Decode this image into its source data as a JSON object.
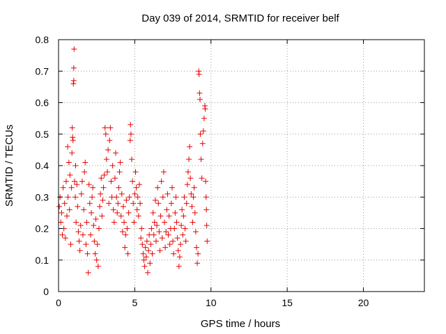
{
  "chart_data": {
    "type": "scatter",
    "title": "Day 039 of 2014, SRMTID for receiver belf",
    "xlabel": "GPS time / hours",
    "ylabel": "SRMTID / TECUs",
    "xlim": [
      0,
      24
    ],
    "ylim": [
      0,
      0.8
    ],
    "xticks": [
      0,
      5,
      10,
      15,
      20
    ],
    "yticks": [
      0,
      0.1,
      0.2,
      0.3,
      0.4,
      0.5,
      0.6,
      0.7,
      0.8
    ],
    "grid": true,
    "marker": "+",
    "series": [
      {
        "name": "SRMTID",
        "color": "#e60000",
        "points": [
          [
            0.05,
            0.27
          ],
          [
            0.1,
            0.3
          ],
          [
            0.15,
            0.22
          ],
          [
            0.2,
            0.25
          ],
          [
            0.25,
            0.18
          ],
          [
            0.3,
            0.33
          ],
          [
            0.35,
            0.2
          ],
          [
            0.4,
            0.28
          ],
          [
            0.45,
            0.17
          ],
          [
            0.5,
            0.35
          ],
          [
            0.55,
            0.24
          ],
          [
            0.6,
            0.46
          ],
          [
            0.62,
            0.3
          ],
          [
            0.68,
            0.41
          ],
          [
            0.72,
            0.26
          ],
          [
            0.75,
            0.37
          ],
          [
            0.8,
            0.15
          ],
          [
            0.85,
            0.33
          ],
          [
            0.88,
            0.44
          ],
          [
            0.9,
            0.52
          ],
          [
            0.92,
            0.49
          ],
          [
            0.95,
            0.48
          ],
          [
            0.97,
            0.66
          ],
          [
            1.0,
            0.67
          ],
          [
            1.0,
            0.71
          ],
          [
            1.02,
            0.77
          ],
          [
            1.05,
            0.35
          ],
          [
            1.1,
            0.3
          ],
          [
            1.12,
            0.4
          ],
          [
            1.15,
            0.22
          ],
          [
            1.2,
            0.34
          ],
          [
            1.25,
            0.27
          ],
          [
            1.3,
            0.19
          ],
          [
            1.35,
            0.16
          ],
          [
            1.4,
            0.13
          ],
          [
            1.45,
            0.21
          ],
          [
            1.5,
            0.31
          ],
          [
            1.55,
            0.35
          ],
          [
            1.6,
            0.18
          ],
          [
            1.65,
            0.26
          ],
          [
            1.7,
            0.38
          ],
          [
            1.75,
            0.41
          ],
          [
            1.8,
            0.15
          ],
          [
            1.85,
            0.22
          ],
          [
            1.9,
            0.12
          ],
          [
            1.95,
            0.06
          ],
          [
            2.0,
            0.34
          ],
          [
            2.05,
            0.28
          ],
          [
            2.1,
            0.18
          ],
          [
            2.15,
            0.25
          ],
          [
            2.2,
            0.3
          ],
          [
            2.25,
            0.33
          ],
          [
            2.3,
            0.21
          ],
          [
            2.35,
            0.16
          ],
          [
            2.4,
            0.12
          ],
          [
            2.45,
            0.23
          ],
          [
            2.5,
            0.1
          ],
          [
            2.55,
            0.15
          ],
          [
            2.6,
            0.08
          ],
          [
            2.65,
            0.2
          ],
          [
            2.7,
            0.27
          ],
          [
            2.75,
            0.31
          ],
          [
            2.8,
            0.36
          ],
          [
            2.85,
            0.24
          ],
          [
            2.9,
            0.29
          ],
          [
            2.95,
            0.33
          ],
          [
            3.0,
            0.37
          ],
          [
            3.05,
            0.52
          ],
          [
            3.1,
            0.5
          ],
          [
            3.15,
            0.42
          ],
          [
            3.2,
            0.38
          ],
          [
            3.25,
            0.45
          ],
          [
            3.3,
            0.28
          ],
          [
            3.35,
            0.48
          ],
          [
            3.4,
            0.52
          ],
          [
            3.45,
            0.35
          ],
          [
            3.5,
            0.3
          ],
          [
            3.55,
            0.4
          ],
          [
            3.6,
            0.26
          ],
          [
            3.65,
            0.22
          ],
          [
            3.7,
            0.36
          ],
          [
            3.75,
            0.44
          ],
          [
            3.8,
            0.3
          ],
          [
            3.85,
            0.25
          ],
          [
            3.9,
            0.28
          ],
          [
            3.95,
            0.33
          ],
          [
            4.0,
            0.38
          ],
          [
            4.05,
            0.41
          ],
          [
            4.1,
            0.24
          ],
          [
            4.15,
            0.31
          ],
          [
            4.2,
            0.19
          ],
          [
            4.25,
            0.27
          ],
          [
            4.3,
            0.22
          ],
          [
            4.35,
            0.14
          ],
          [
            4.4,
            0.18
          ],
          [
            4.45,
            0.29
          ],
          [
            4.5,
            0.2
          ],
          [
            4.55,
            0.12
          ],
          [
            4.6,
            0.25
          ],
          [
            4.65,
            0.3
          ],
          [
            4.7,
            0.48
          ],
          [
            4.72,
            0.53
          ],
          [
            4.75,
            0.5
          ],
          [
            4.8,
            0.42
          ],
          [
            4.85,
            0.35
          ],
          [
            4.9,
            0.28
          ],
          [
            4.95,
            0.22
          ],
          [
            5.0,
            0.31
          ],
          [
            5.05,
            0.38
          ],
          [
            5.1,
            0.33
          ],
          [
            5.15,
            0.26
          ],
          [
            5.2,
            0.3
          ],
          [
            5.25,
            0.24
          ],
          [
            5.3,
            0.34
          ],
          [
            5.35,
            0.28
          ],
          [
            5.4,
            0.17
          ],
          [
            5.45,
            0.2
          ],
          [
            5.5,
            0.15
          ],
          [
            5.55,
            0.12
          ],
          [
            5.6,
            0.1
          ],
          [
            5.65,
            0.08
          ],
          [
            5.7,
            0.14
          ],
          [
            5.75,
            0.11
          ],
          [
            5.8,
            0.16
          ],
          [
            5.85,
            0.06
          ],
          [
            5.9,
            0.13
          ],
          [
            5.95,
            0.18
          ],
          [
            6.0,
            0.09
          ],
          [
            6.05,
            0.15
          ],
          [
            6.1,
            0.2
          ],
          [
            6.15,
            0.12
          ],
          [
            6.2,
            0.25
          ],
          [
            6.25,
            0.18
          ],
          [
            6.3,
            0.22
          ],
          [
            6.35,
            0.29
          ],
          [
            6.4,
            0.16
          ],
          [
            6.45,
            0.21
          ],
          [
            6.5,
            0.33
          ],
          [
            6.55,
            0.28
          ],
          [
            6.6,
            0.19
          ],
          [
            6.65,
            0.13
          ],
          [
            6.7,
            0.24
          ],
          [
            6.75,
            0.35
          ],
          [
            6.8,
            0.17
          ],
          [
            6.85,
            0.3
          ],
          [
            6.9,
            0.38
          ],
          [
            6.95,
            0.22
          ],
          [
            7.0,
            0.14
          ],
          [
            7.05,
            0.19
          ],
          [
            7.1,
            0.26
          ],
          [
            7.15,
            0.31
          ],
          [
            7.2,
            0.18
          ],
          [
            7.25,
            0.24
          ],
          [
            7.3,
            0.15
          ],
          [
            7.35,
            0.2
          ],
          [
            7.4,
            0.28
          ],
          [
            7.45,
            0.33
          ],
          [
            7.5,
            0.16
          ],
          [
            7.55,
            0.12
          ],
          [
            7.6,
            0.2
          ],
          [
            7.65,
            0.25
          ],
          [
            7.7,
            0.3
          ],
          [
            7.75,
            0.22
          ],
          [
            7.8,
            0.17
          ],
          [
            7.85,
            0.13
          ],
          [
            7.9,
            0.08
          ],
          [
            7.95,
            0.11
          ],
          [
            8.0,
            0.15
          ],
          [
            8.05,
            0.21
          ],
          [
            8.1,
            0.26
          ],
          [
            8.15,
            0.18
          ],
          [
            8.2,
            0.24
          ],
          [
            8.25,
            0.3
          ],
          [
            8.3,
            0.2
          ],
          [
            8.35,
            0.16
          ],
          [
            8.4,
            0.28
          ],
          [
            8.45,
            0.34
          ],
          [
            8.5,
            0.38
          ],
          [
            8.55,
            0.42
          ],
          [
            8.6,
            0.46
          ],
          [
            8.65,
            0.36
          ],
          [
            8.7,
            0.31
          ],
          [
            8.75,
            0.27
          ],
          [
            8.8,
            0.22
          ],
          [
            8.85,
            0.3
          ],
          [
            8.9,
            0.33
          ],
          [
            8.95,
            0.25
          ],
          [
            9.0,
            0.19
          ],
          [
            9.05,
            0.14
          ],
          [
            9.1,
            0.09
          ],
          [
            9.15,
            0.12
          ],
          [
            9.2,
            0.7
          ],
          [
            9.22,
            0.69
          ],
          [
            9.25,
            0.63
          ],
          [
            9.28,
            0.61
          ],
          [
            9.3,
            0.5
          ],
          [
            9.35,
            0.42
          ],
          [
            9.4,
            0.36
          ],
          [
            9.45,
            0.47
          ],
          [
            9.5,
            0.51
          ],
          [
            9.55,
            0.55
          ],
          [
            9.6,
            0.59
          ],
          [
            9.62,
            0.58
          ],
          [
            9.65,
            0.35
          ],
          [
            9.68,
            0.3
          ],
          [
            9.7,
            0.26
          ],
          [
            9.72,
            0.21
          ],
          [
            9.75,
            0.16
          ]
        ]
      }
    ]
  }
}
